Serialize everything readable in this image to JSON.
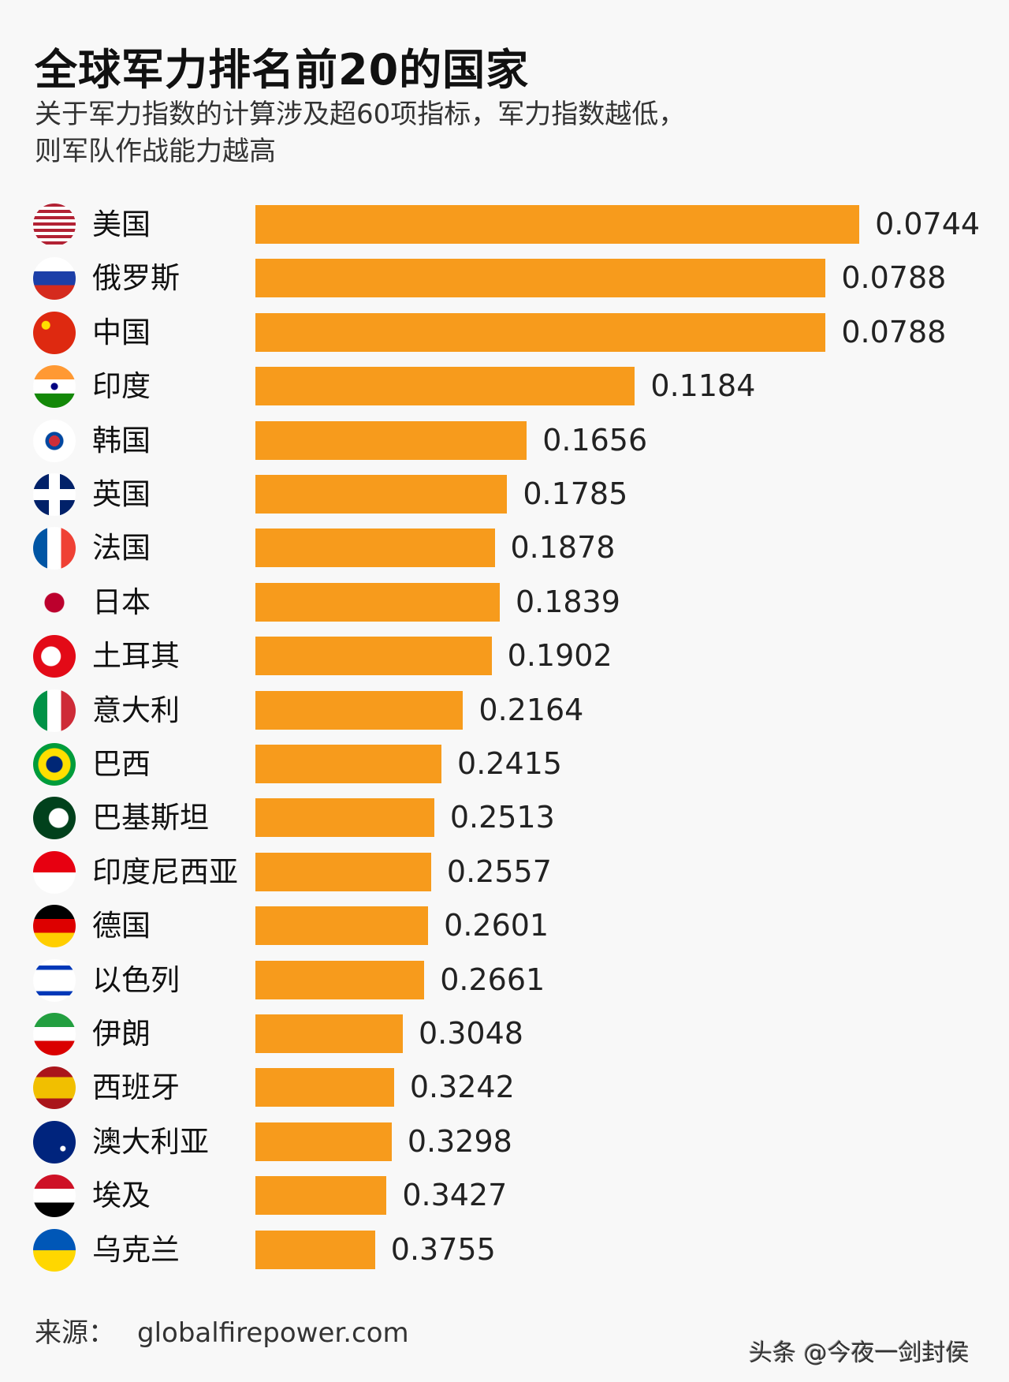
{
  "title": "全球军力排名前20的国家",
  "subtitle_line1": "关于军力指数的计算涉及超60项指标，军力指数越低，",
  "subtitle_line2": "则军队作战能力越高",
  "source_label": "来源：",
  "source_value": "globalfirepower.com",
  "watermark": "头条 @今夜一剑封侯",
  "chart_data": {
    "type": "bar",
    "orientation": "horizontal",
    "bar_color": "#F79B1C",
    "note_scale": "bar length inversely related to index",
    "categories": [
      "美国",
      "俄罗斯",
      "中国",
      "印度",
      "韩国",
      "英国",
      "法国",
      "日本",
      "土耳其",
      "意大利",
      "巴西",
      "巴基斯坦",
      "印度尼西亚",
      "德国",
      "以色列",
      "伊朗",
      "西班牙",
      "澳大利亚",
      "埃及",
      "乌克兰"
    ],
    "values": [
      0.0744,
      0.0788,
      0.0788,
      0.1184,
      0.1656,
      0.1785,
      0.1878,
      0.1839,
      0.1902,
      0.2164,
      0.2415,
      0.2513,
      0.2557,
      0.2601,
      0.2661,
      0.3048,
      0.3242,
      0.3298,
      0.3427,
      0.3755
    ],
    "value_labels": [
      "0.0744",
      "0.0788",
      "0.0788",
      "0.1184",
      "0.1656",
      "0.1785",
      "0.1878",
      "0.1839",
      "0.1902",
      "0.2164",
      "0.2415",
      "0.2513",
      "0.2557",
      "0.2601",
      "0.2661",
      "0.3048",
      "0.3242",
      "0.3298",
      "0.3427",
      "0.3755"
    ],
    "flag_icons": [
      "us-flag-icon",
      "russia-flag-icon",
      "china-flag-icon",
      "india-flag-icon",
      "korea-flag-icon",
      "uk-flag-icon",
      "france-flag-icon",
      "japan-flag-icon",
      "turkey-flag-icon",
      "italy-flag-icon",
      "brazil-flag-icon",
      "pakistan-flag-icon",
      "indonesia-flag-icon",
      "germany-flag-icon",
      "israel-flag-icon",
      "iran-flag-icon",
      "spain-flag-icon",
      "australia-flag-icon",
      "egypt-flag-icon",
      "ukraine-flag-icon"
    ]
  }
}
